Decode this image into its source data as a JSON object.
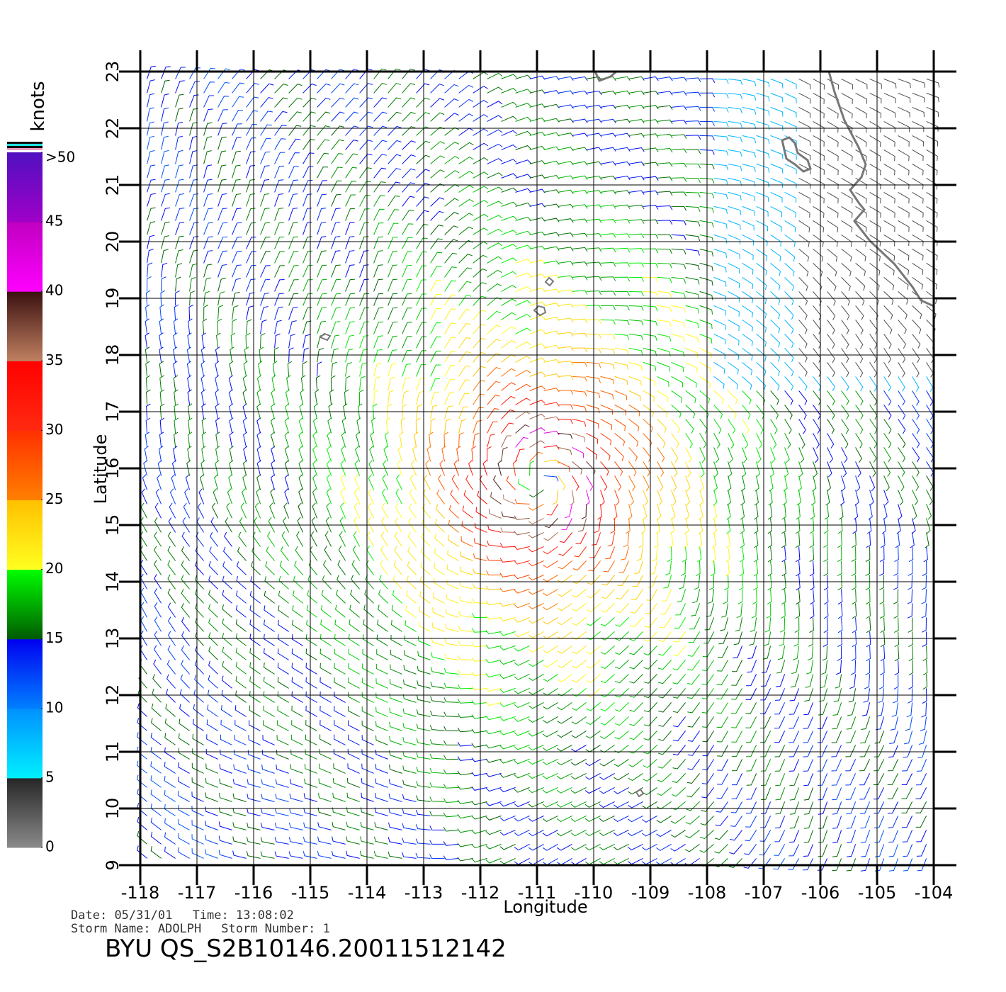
{
  "chart_data": {
    "type": "wind",
    "xlabel": "Longitude",
    "ylabel": "Latitude",
    "xlim": [
      -118,
      -104
    ],
    "ylim": [
      9,
      23
    ],
    "xticks": [
      -118,
      -117,
      -116,
      -115,
      -114,
      -113,
      -112,
      -111,
      -110,
      -109,
      -108,
      -107,
      -106,
      -105,
      -104
    ],
    "yticks": [
      9,
      10,
      11,
      12,
      13,
      14,
      15,
      16,
      17,
      18,
      19,
      20,
      21,
      22,
      23
    ],
    "grid": true,
    "colorbar": {
      "label": "knots",
      "lim": [
        0,
        50
      ],
      "ticks": [
        0,
        5,
        10,
        15,
        20,
        25,
        30,
        35,
        40,
        45,
        {
          "value": 50,
          "label": ">50"
        }
      ],
      "bands": [
        [
          "#8a8a8a",
          "#262626"
        ],
        [
          "#00f0ff",
          "#0090ff"
        ],
        [
          "#0080ff",
          "#0000f0"
        ],
        [
          "#005a00",
          "#00ff00"
        ],
        [
          "#ffff20",
          "#ffc000"
        ],
        [
          "#ff8000",
          "#ff3000"
        ],
        [
          "#ff2a10",
          "#ff0000"
        ],
        [
          "#c08060",
          "#3a1010"
        ],
        [
          "#ff00ff",
          "#c000c0"
        ],
        [
          "#a000c8",
          "#5010c0"
        ]
      ]
    }
  },
  "footer": {
    "date_label": "Date:",
    "date": "05/31/01",
    "time_label": "Time:",
    "time": "13:08:02",
    "storm_name_label": "Storm Name:",
    "storm_name": "ADOLPH",
    "storm_number_label": "Storm Number:",
    "storm_number": 1,
    "product": "BYU QS_S2B10146.20011512142"
  }
}
